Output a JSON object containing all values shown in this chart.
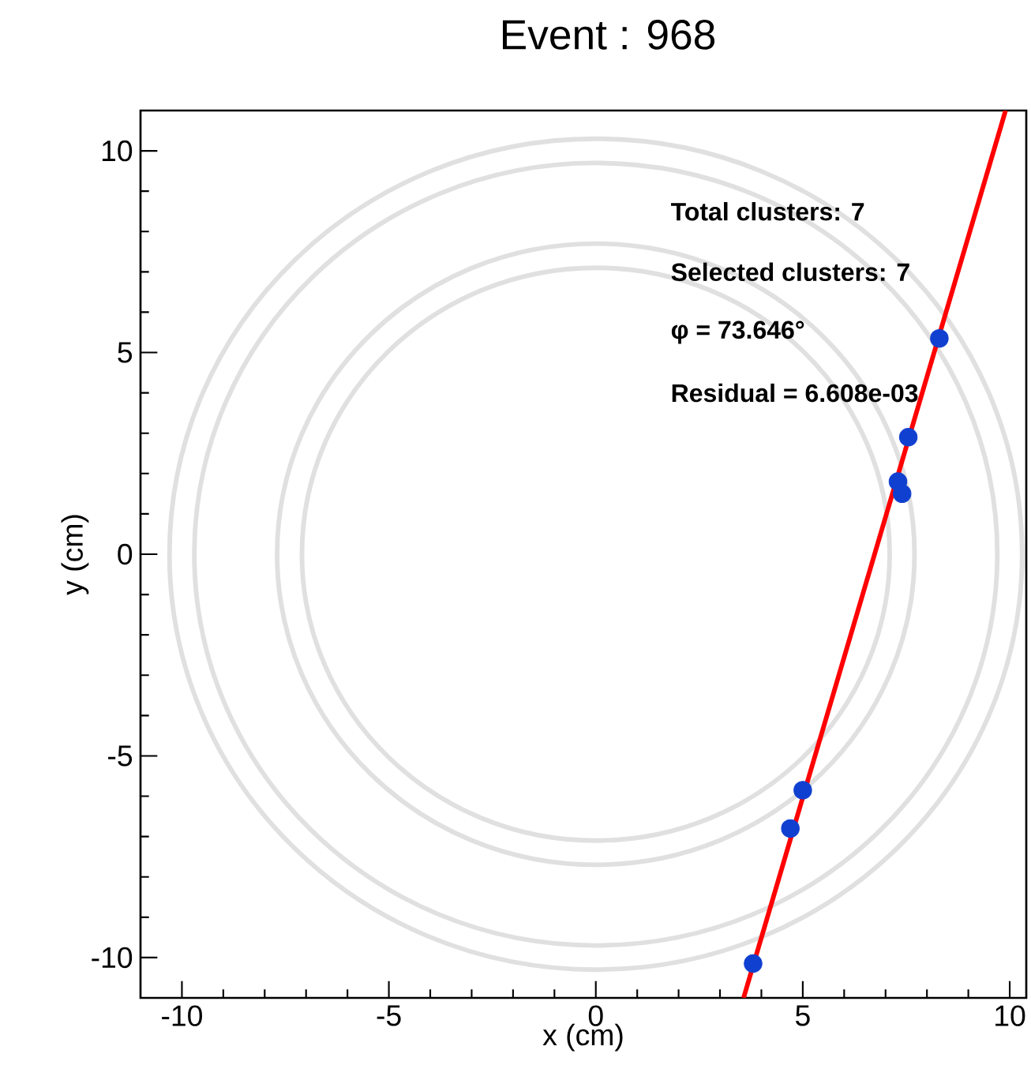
{
  "chart_data": {
    "type": "scatter",
    "title": "Event : 968",
    "xlabel": "x (cm)",
    "ylabel": "y (cm)",
    "xlim": [
      -11,
      10.4
    ],
    "ylim": [
      -11,
      11
    ],
    "xticks": [
      -10,
      -5,
      0,
      5,
      10
    ],
    "yticks": [
      -10,
      -5,
      0,
      5,
      10
    ],
    "grid": false,
    "annotations": [
      "Total clusters: 7",
      "Selected clusters: 7",
      "φ = 73.646°",
      "Residual = 6.608e-03"
    ],
    "series": [
      {
        "color": "#1040d0",
        "x": [
          8.3,
          7.55,
          7.3,
          7.4,
          5.0,
          4.7,
          3.8
        ],
        "values": [
          5.35,
          2.9,
          1.8,
          1.5,
          -5.85,
          -6.8,
          -10.15
        ]
      },
      {
        "type": "line",
        "color": "#ff0000",
        "x": [
          3.57,
          9.9
        ],
        "values": [
          -11,
          11
        ]
      }
    ]
  }
}
